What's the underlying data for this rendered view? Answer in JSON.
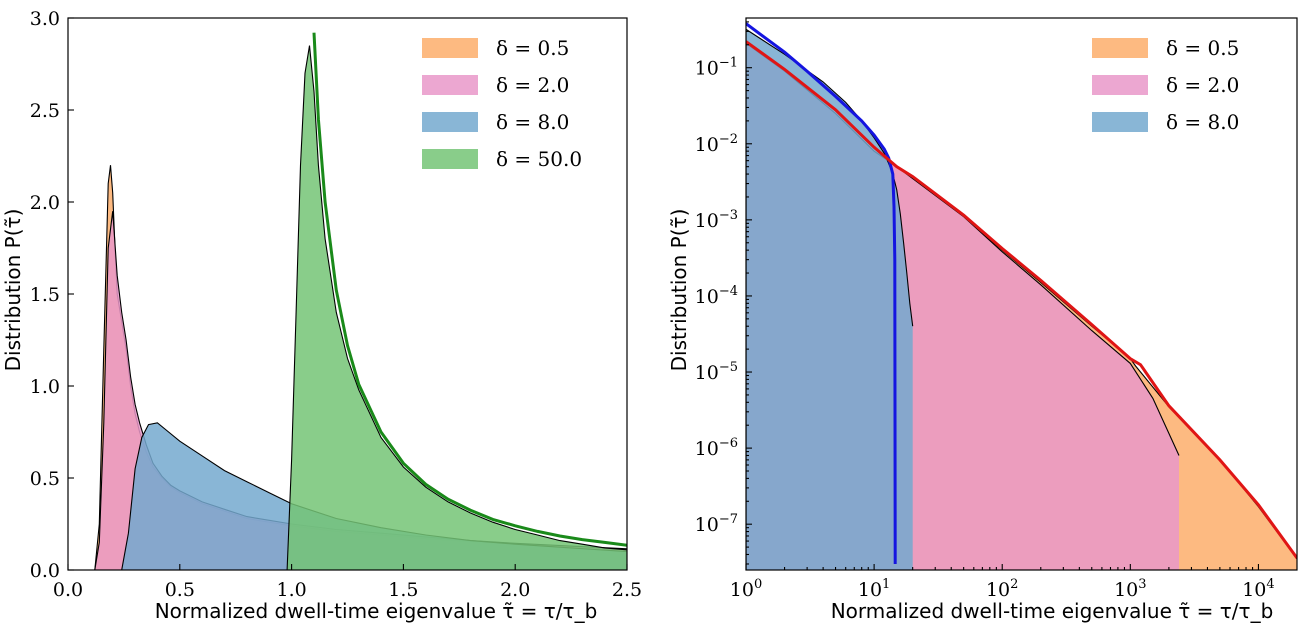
{
  "chart_data": [
    {
      "type": "area",
      "panel": "left",
      "xlabel": "Normalized dwell-time eigenvalue τ̃ = τ/τ_b",
      "ylabel": "Distribution P(τ̃)",
      "xlim": [
        0.0,
        2.5
      ],
      "ylim": [
        0.0,
        3.0
      ],
      "xticks": [
        "0.0",
        "0.5",
        "1.0",
        "1.5",
        "2.0",
        "2.5"
      ],
      "yticks": [
        "0.0",
        "0.5",
        "1.0",
        "1.5",
        "2.0",
        "2.5",
        "3.0"
      ],
      "legend_position": "top-right",
      "series": [
        {
          "name": "δ = 0.5",
          "color": "#fdae6b",
          "x": [
            0.12,
            0.14,
            0.16,
            0.18,
            0.19,
            0.2,
            0.21,
            0.22,
            0.24,
            0.26,
            0.28,
            0.3,
            0.32,
            0.35,
            0.38,
            0.42,
            0.46,
            0.5,
            0.6,
            0.7,
            0.8,
            0.9,
            1.0,
            1.2,
            1.4,
            1.6,
            1.8,
            2.0,
            2.25,
            2.5
          ],
          "y": [
            0.0,
            0.25,
            1.2,
            2.1,
            2.2,
            2.05,
            1.75,
            1.5,
            1.35,
            1.2,
            1.0,
            0.85,
            0.75,
            0.64,
            0.56,
            0.5,
            0.45,
            0.42,
            0.36,
            0.32,
            0.28,
            0.26,
            0.24,
            0.21,
            0.19,
            0.17,
            0.155,
            0.14,
            0.125,
            0.11
          ]
        },
        {
          "name": "δ = 2.0",
          "color": "#e998c9",
          "x": [
            0.12,
            0.14,
            0.16,
            0.18,
            0.2,
            0.22,
            0.24,
            0.26,
            0.28,
            0.3,
            0.32,
            0.35,
            0.38,
            0.42,
            0.46,
            0.5,
            0.6,
            0.7,
            0.8,
            0.9,
            1.0,
            1.2,
            1.4,
            1.6,
            1.8,
            2.0,
            2.25,
            2.5
          ],
          "y": [
            0.0,
            0.15,
            0.8,
            1.75,
            1.95,
            1.6,
            1.4,
            1.25,
            1.05,
            0.9,
            0.8,
            0.68,
            0.58,
            0.51,
            0.46,
            0.43,
            0.37,
            0.33,
            0.29,
            0.27,
            0.25,
            0.22,
            0.2,
            0.18,
            0.16,
            0.145,
            0.13,
            0.115
          ]
        },
        {
          "name": "δ = 8.0",
          "color": "#74a9cf",
          "x": [
            0.24,
            0.27,
            0.3,
            0.33,
            0.36,
            0.4,
            0.45,
            0.5,
            0.6,
            0.7,
            0.8,
            0.9,
            1.0,
            1.2,
            1.4,
            1.6,
            1.8,
            2.0,
            2.25,
            2.5
          ],
          "y": [
            0.0,
            0.2,
            0.55,
            0.72,
            0.79,
            0.8,
            0.75,
            0.7,
            0.62,
            0.54,
            0.48,
            0.42,
            0.36,
            0.28,
            0.23,
            0.19,
            0.16,
            0.14,
            0.12,
            0.1
          ]
        },
        {
          "name": "δ = 50.0",
          "color": "#74c476",
          "x": [
            0.98,
            1.0,
            1.02,
            1.04,
            1.06,
            1.08,
            1.1,
            1.12,
            1.15,
            1.2,
            1.25,
            1.3,
            1.4,
            1.5,
            1.6,
            1.7,
            1.8,
            1.9,
            2.0,
            2.1,
            2.2,
            2.3,
            2.4,
            2.5
          ],
          "y": [
            0.0,
            0.6,
            1.4,
            2.2,
            2.7,
            2.85,
            2.6,
            2.2,
            1.8,
            1.4,
            1.15,
            0.98,
            0.72,
            0.56,
            0.45,
            0.37,
            0.31,
            0.26,
            0.22,
            0.19,
            0.16,
            0.14,
            0.12,
            0.11
          ]
        }
      ],
      "curves": [
        {
          "color": "#1a8a1a",
          "x": [
            1.1,
            1.12,
            1.15,
            1.2,
            1.25,
            1.3,
            1.4,
            1.5,
            1.6,
            1.7,
            1.8,
            1.9,
            2.0,
            2.1,
            2.2,
            2.3,
            2.4,
            2.5
          ],
          "y": [
            2.92,
            2.45,
            2.0,
            1.52,
            1.22,
            1.01,
            0.75,
            0.58,
            0.465,
            0.385,
            0.325,
            0.275,
            0.24,
            0.21,
            0.185,
            0.165,
            0.15,
            0.135
          ]
        }
      ]
    },
    {
      "type": "area",
      "panel": "right",
      "xlabel": "Normalized dwell-time eigenvalue τ̃ = τ/τ_b",
      "ylabel": "Distribution P(τ̃)",
      "xscale": "log",
      "yscale": "log",
      "xlim": [
        1,
        20000
      ],
      "ylim": [
        2.5e-08,
        0.45
      ],
      "xticks": [
        {
          "value": 1,
          "base": "10",
          "exp": "0"
        },
        {
          "value": 10,
          "base": "10",
          "exp": "1"
        },
        {
          "value": 100,
          "base": "10",
          "exp": "2"
        },
        {
          "value": 1000,
          "base": "10",
          "exp": "3"
        },
        {
          "value": 10000,
          "base": "10",
          "exp": "4"
        }
      ],
      "yticks": [
        {
          "value": 1e-07,
          "base": "10",
          "exp": "−7"
        },
        {
          "value": 1e-06,
          "base": "10",
          "exp": "−6"
        },
        {
          "value": 1e-05,
          "base": "10",
          "exp": "−5"
        },
        {
          "value": 0.0001,
          "base": "10",
          "exp": "−4"
        },
        {
          "value": 0.001,
          "base": "10",
          "exp": "−3"
        },
        {
          "value": 0.01,
          "base": "10",
          "exp": "−2"
        },
        {
          "value": 0.1,
          "base": "10",
          "exp": "−1"
        }
      ],
      "legend_position": "top-right",
      "series": [
        {
          "name": "δ = 0.5",
          "color": "#fdae6b",
          "x": [
            1,
            2,
            5,
            10,
            15,
            20,
            50,
            100,
            200,
            500,
            1000,
            1100,
            2000,
            5000,
            10000,
            20000
          ],
          "y": [
            0.21,
            0.09,
            0.025,
            0.008,
            0.005,
            0.0035,
            0.0011,
            0.0004,
            0.00015,
            4e-05,
            1.5e-05,
            1.2e-05,
            3.5e-06,
            7e-07,
            1.7e-07,
            3.5e-08
          ]
        },
        {
          "name": "δ = 2.0",
          "color": "#e998c9",
          "x": [
            1,
            2,
            5,
            10,
            15,
            20,
            50,
            100,
            200,
            500,
            1000,
            1500,
            2400
          ],
          "y": [
            0.21,
            0.09,
            0.025,
            0.008,
            0.005,
            0.0035,
            0.0011,
            0.00038,
            0.00014,
            3.5e-05,
            1.3e-05,
            4.5e-06,
            8e-07
          ]
        },
        {
          "name": "δ = 8.0",
          "color": "#74a9cf",
          "x": [
            1,
            2,
            4,
            6,
            8,
            10,
            12,
            13,
            14,
            15,
            16,
            17,
            18,
            19,
            20
          ],
          "y": [
            0.32,
            0.15,
            0.065,
            0.035,
            0.02,
            0.012,
            0.0075,
            0.0055,
            0.004,
            0.0025,
            0.0012,
            0.0005,
            0.0002,
            8e-05,
            4e-05
          ]
        }
      ],
      "curves": [
        {
          "color": "#1515e0",
          "x": [
            1,
            2,
            3,
            5,
            8,
            10,
            12,
            13,
            14,
            14.3,
            14.5,
            14.6
          ],
          "y": [
            0.38,
            0.16,
            0.09,
            0.042,
            0.02,
            0.013,
            0.0085,
            0.0065,
            0.004,
            0.0015,
            0.0003,
            3e-08
          ]
        },
        {
          "color": "#e01515",
          "x": [
            1,
            2,
            5,
            10,
            15,
            20,
            50,
            100,
            200,
            500,
            1000,
            1200,
            2000,
            5000,
            10000,
            20000
          ],
          "y": [
            0.22,
            0.095,
            0.028,
            0.009,
            0.005,
            0.0037,
            0.00115,
            0.00042,
            0.00016,
            4.2e-05,
            1.5e-05,
            1.25e-05,
            3.6e-06,
            7e-07,
            1.8e-07,
            3.6e-08
          ]
        }
      ]
    }
  ]
}
